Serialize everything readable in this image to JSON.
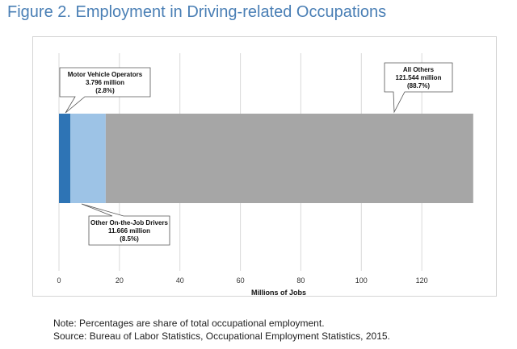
{
  "figure": {
    "title": "Figure 2.  Employment in Driving-related Occupations"
  },
  "chart_data": {
    "type": "bar",
    "orientation": "horizontal-stacked",
    "xlabel": "Millions of Jobs",
    "xlim": [
      0,
      140
    ],
    "xticks": [
      0,
      20,
      40,
      60,
      80,
      100,
      120
    ],
    "grid": true,
    "series": [
      {
        "name": "Motor Vehicle Operators",
        "value": 3.796,
        "value_label": "3.796  million",
        "pct_label": "(2.8%)",
        "color": "#2e74b5"
      },
      {
        "name": "Other On-the-Job Drivers",
        "value": 11.666,
        "value_label": "11.666  million",
        "pct_label": "(8.5%)",
        "color": "#9dc3e6"
      },
      {
        "name": "All Others",
        "value": 121.544,
        "value_label": "121.544  million",
        "pct_label": "(88.7%)",
        "color": "#a6a6a6"
      }
    ]
  },
  "notes": {
    "note": "Note: Percentages are share of total occupational employment.",
    "source": "Source:   Bureau of Labor Statistics, Occupational Employment Statistics, 2015."
  }
}
